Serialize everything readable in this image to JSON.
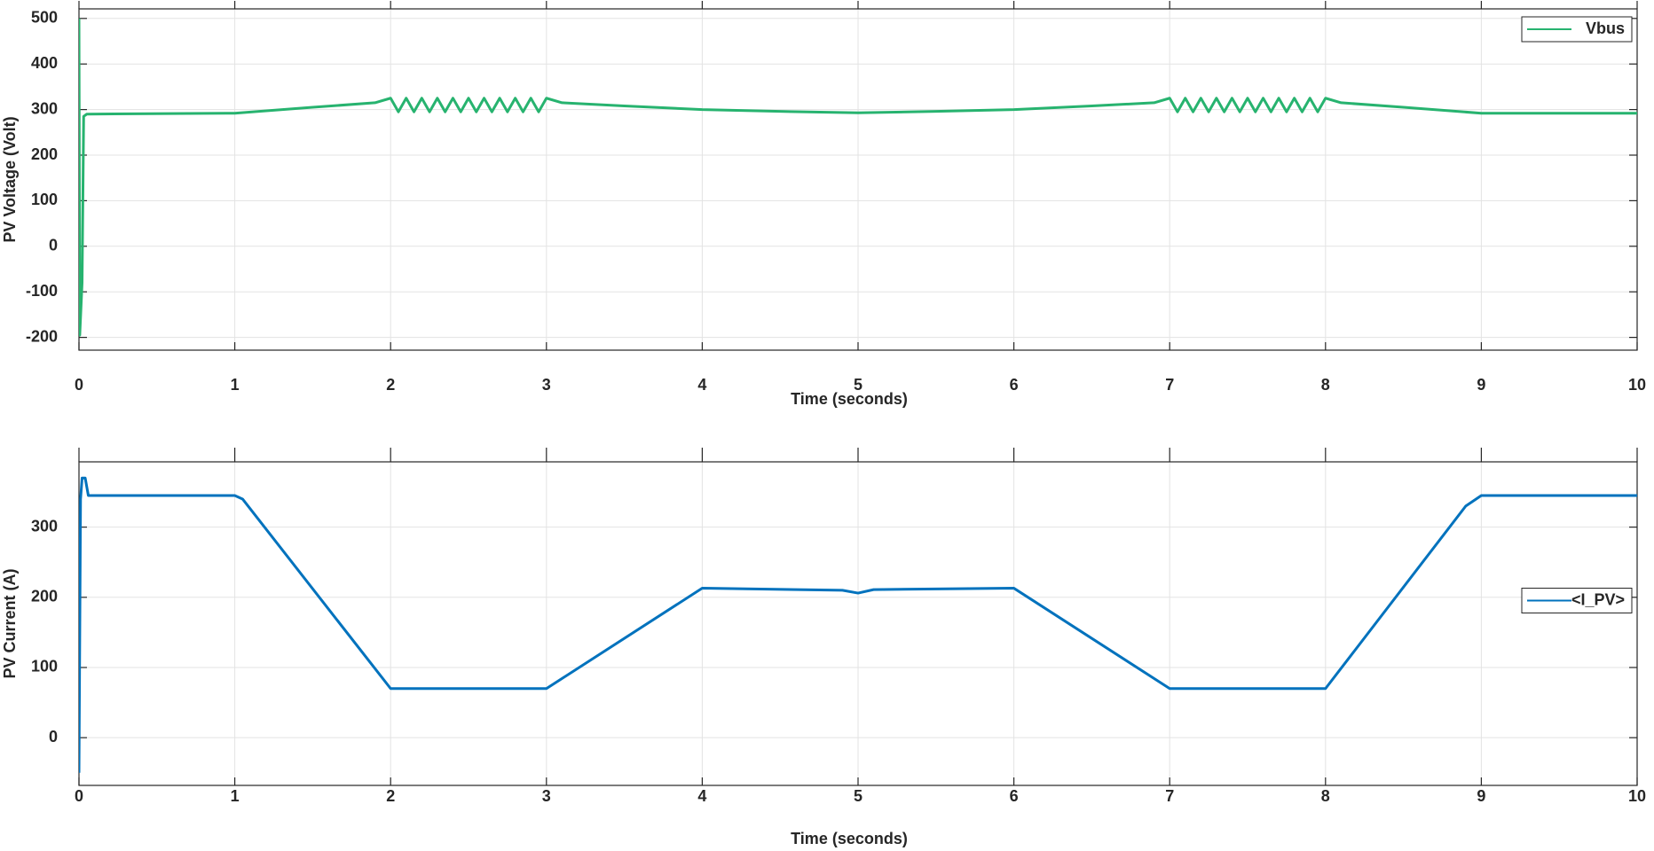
{
  "chart_data": [
    {
      "type": "line",
      "xlabel": "Time (seconds)",
      "ylabel": "PV Voltage (Volt)",
      "xlim": [
        0,
        10
      ],
      "xticks": [
        0,
        1,
        2,
        3,
        4,
        5,
        6,
        7,
        8,
        9,
        10
      ],
      "ylim": [
        -228,
        521
      ],
      "yticks": [
        -200,
        -100,
        0,
        100,
        200,
        300,
        400,
        500
      ],
      "grid": true,
      "legend": "upper right",
      "x": [
        0,
        0.005,
        0.02,
        0.03,
        0.05,
        1,
        1.5,
        1.9,
        2.0,
        2.05,
        2.1,
        2.15,
        2.2,
        2.25,
        2.3,
        2.35,
        2.4,
        2.45,
        2.5,
        2.55,
        2.6,
        2.65,
        2.7,
        2.75,
        2.8,
        2.85,
        2.9,
        2.95,
        3.0,
        3.1,
        3.5,
        4,
        4.5,
        5,
        5.5,
        6,
        6.5,
        6.9,
        7.0,
        7.05,
        7.1,
        7.15,
        7.2,
        7.25,
        7.3,
        7.35,
        7.4,
        7.45,
        7.5,
        7.55,
        7.6,
        7.65,
        7.7,
        7.75,
        7.8,
        7.85,
        7.9,
        7.95,
        8.0,
        8.1,
        8.5,
        9,
        10
      ],
      "series": [
        {
          "name": "Vbus",
          "color": "#27b36f",
          "values": [
            500,
            -195,
            -80,
            285,
            290,
            292,
            305,
            315,
            325,
            295,
            325,
            295,
            325,
            295,
            325,
            295,
            325,
            295,
            325,
            295,
            325,
            295,
            325,
            295,
            325,
            295,
            325,
            295,
            325,
            315,
            308,
            300,
            296,
            293,
            296,
            300,
            308,
            315,
            325,
            295,
            325,
            295,
            325,
            295,
            325,
            295,
            325,
            295,
            325,
            295,
            325,
            295,
            325,
            295,
            325,
            295,
            325,
            295,
            325,
            315,
            305,
            292,
            292
          ]
        }
      ]
    },
    {
      "type": "line",
      "xlabel": "Time (seconds)",
      "ylabel": "PV Current (A)",
      "xlim": [
        0,
        10
      ],
      "xticks": [
        0,
        1,
        2,
        3,
        4,
        5,
        6,
        7,
        8,
        9,
        10
      ],
      "ylim": [
        -68,
        393
      ],
      "yticks": [
        0,
        100,
        200,
        300
      ],
      "grid": true,
      "legend": "right",
      "x": [
        0,
        0.01,
        0.02,
        0.04,
        0.06,
        1,
        1.05,
        2,
        3,
        4,
        4.9,
        5,
        5.1,
        6,
        7,
        8,
        8.9,
        9,
        10
      ],
      "series": [
        {
          "name": "<I_PV>",
          "color": "#0072bd",
          "values": [
            -50,
            340,
            370,
            370,
            345,
            345,
            340,
            70,
            70,
            213,
            210,
            206,
            211,
            213,
            70,
            70,
            330,
            345,
            345
          ]
        }
      ]
    }
  ]
}
